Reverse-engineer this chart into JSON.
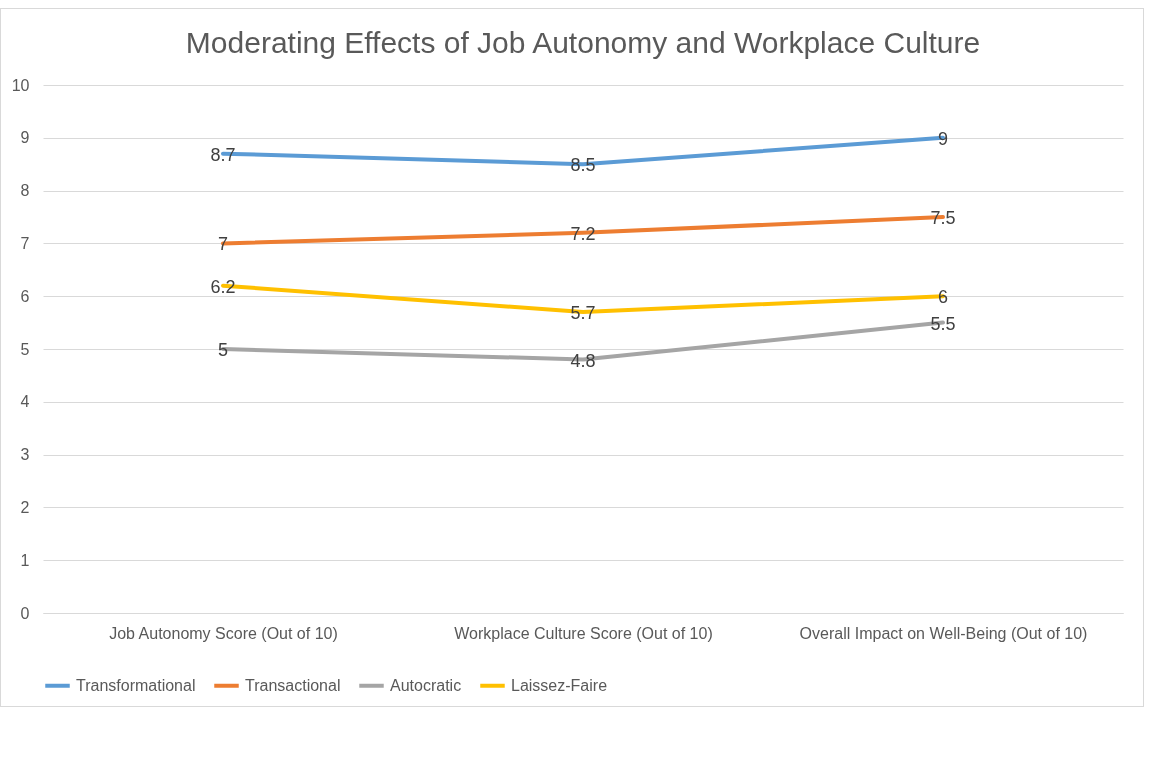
{
  "chart_data": {
    "type": "line",
    "title": "Moderating Effects of Job Autonomy and Workplace Culture",
    "categories": [
      "Job Autonomy Score (Out of 10)",
      "Workplace Culture Score (Out of 10)",
      "Overall Impact on Well-Being (Out of 10)"
    ],
    "series": [
      {
        "name": "Transformational",
        "color": "#5b9bd5",
        "values": [
          8.7,
          8.5,
          9
        ]
      },
      {
        "name": "Transactional",
        "color": "#ed7d31",
        "values": [
          7,
          7.2,
          7.5
        ]
      },
      {
        "name": "Autocratic",
        "color": "#a5a5a5",
        "values": [
          5,
          4.8,
          5.5
        ]
      },
      {
        "name": "Laissez-Faire",
        "color": "#ffc000",
        "values": [
          6.2,
          5.7,
          6
        ]
      }
    ],
    "ylim": [
      0,
      10
    ],
    "yticks": [
      0,
      1,
      2,
      3,
      4,
      5,
      6,
      7,
      8,
      9,
      10
    ],
    "grid": "y",
    "legend": "bottom",
    "data_labels": true,
    "marker": "none",
    "line_style": "solid"
  }
}
